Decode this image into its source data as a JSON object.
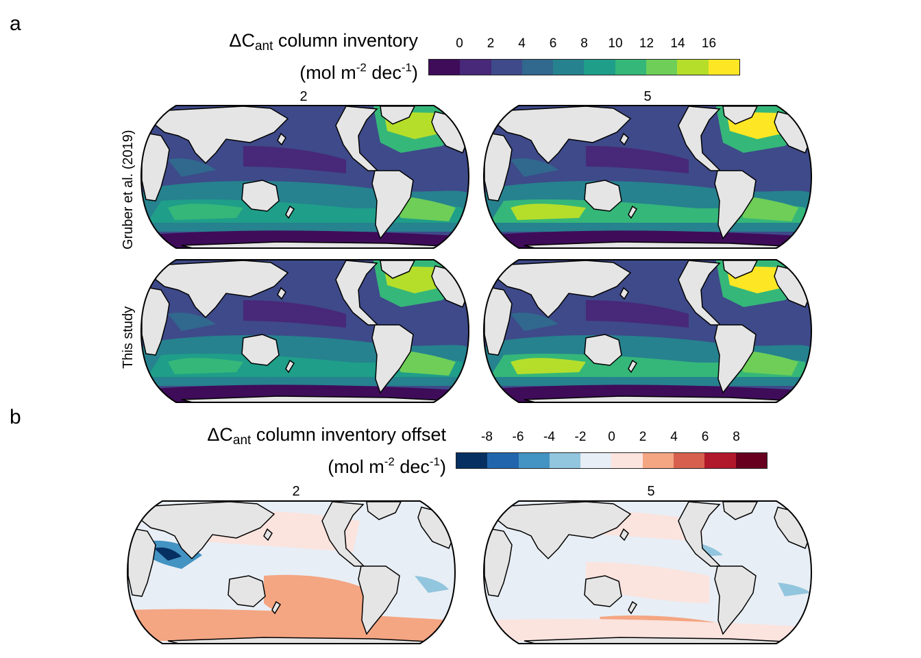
{
  "panel_a": {
    "letter": "a",
    "colorbar": {
      "title_prefix": "ΔC",
      "title_sub": "ant",
      "title_rest": " column inventory",
      "units_pre": "(mol m",
      "units_exp1": "-2",
      "units_mid": " dec",
      "units_exp2": "-1",
      "units_post": ")",
      "ticks": [
        "0",
        "2",
        "4",
        "6",
        "8",
        "10",
        "12",
        "14",
        "16"
      ],
      "colors": [
        "#3f0c5a",
        "#482878",
        "#3e4a89",
        "#31688e",
        "#26828e",
        "#1f9e89",
        "#35b779",
        "#6ece58",
        "#b5de2b",
        "#fde725"
      ]
    },
    "col_titles": [
      "2",
      "5"
    ],
    "row_labels": [
      "Gruber et al. (2019)",
      "This study"
    ]
  },
  "panel_b": {
    "letter": "b",
    "colorbar": {
      "title_prefix": "ΔC",
      "title_sub": "ant",
      "title_rest": " column inventory offset",
      "units_pre": "(mol m",
      "units_exp1": "-2",
      "units_mid": " dec",
      "units_exp2": "-1",
      "units_post": ")",
      "ticks": [
        "-8",
        "-6",
        "-4",
        "-2",
        "0",
        "2",
        "4",
        "6",
        "8"
      ],
      "colors": [
        "#053061",
        "#2166ac",
        "#4393c3",
        "#92c5de",
        "#e8eef5",
        "#fbe3de",
        "#f4a582",
        "#d6604d",
        "#b2182b",
        "#67001f"
      ]
    },
    "col_titles": [
      "2",
      "5"
    ]
  }
}
